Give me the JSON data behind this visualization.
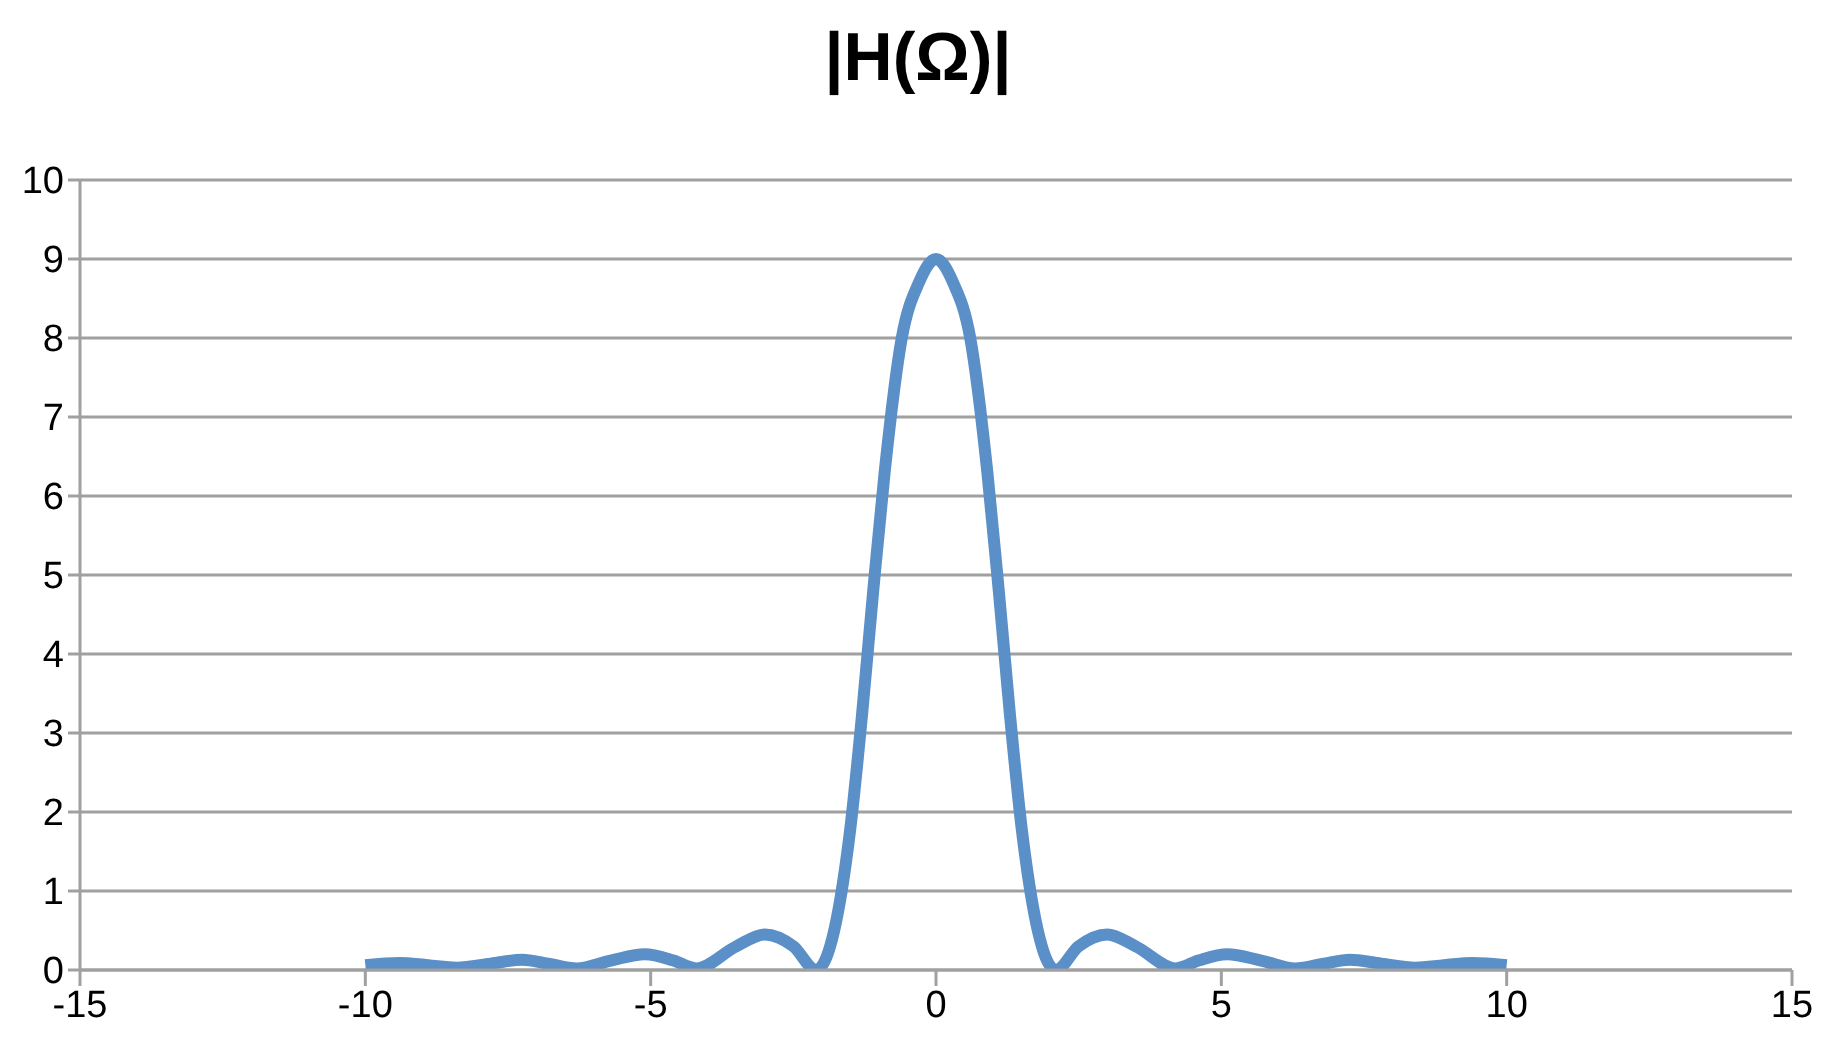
{
  "chart_data": {
    "type": "line",
    "title": "|H(Ω)|",
    "x": [
      -10,
      -9.4,
      -8.9,
      -8.4,
      -7.8,
      -7.25,
      -6.8,
      -6.3,
      -5.7,
      -5.1,
      -4.6,
      -4.2,
      -3.5,
      -3,
      -2.5,
      -2.1,
      -1.9,
      -1.7,
      -1.5,
      -1.3,
      -1.1,
      -0.9,
      -0.6,
      -0.3,
      0,
      0.3,
      0.6,
      0.9,
      1.1,
      1.3,
      1.5,
      1.7,
      1.9,
      2.1,
      2.5,
      3,
      3.5,
      4.2,
      4.6,
      5.1,
      5.7,
      6.3,
      6.8,
      7.25,
      7.8,
      8.4,
      8.9,
      9.4,
      10
    ],
    "series": [
      {
        "color": "#5b8fc7",
        "values": [
          0.06,
          0.09,
          0.06,
          0.03,
          0.08,
          0.13,
          0.08,
          0.02,
          0.12,
          0.2,
          0.12,
          0.02,
          0.3,
          0.45,
          0.3,
          0,
          0.2,
          0.8,
          1.8,
          3.2,
          4.8,
          6.3,
          8,
          8.7,
          9,
          8.7,
          8,
          6.3,
          4.8,
          3.2,
          1.8,
          0.8,
          0.2,
          0,
          0.3,
          0.45,
          0.3,
          0.02,
          0.12,
          0.2,
          0.12,
          0.02,
          0.08,
          0.13,
          0.08,
          0.03,
          0.06,
          0.09,
          0.06
        ]
      }
    ],
    "xlim": [
      -15,
      15
    ],
    "xticks": [
      -15,
      -10,
      -5,
      0,
      5,
      10,
      15
    ],
    "ylim": [
      0,
      10
    ],
    "yticks": [
      0,
      1,
      2,
      3,
      4,
      5,
      6,
      7,
      8,
      9,
      10
    ],
    "grid": "y",
    "legend": false,
    "marker": "none",
    "line_style": "solid"
  }
}
